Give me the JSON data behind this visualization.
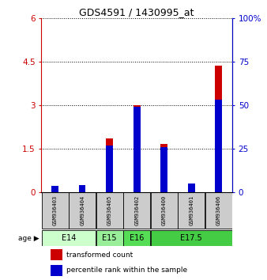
{
  "title": "GDS4591 / 1430995_at",
  "samples": [
    "GSM936403",
    "GSM936404",
    "GSM936405",
    "GSM936402",
    "GSM936400",
    "GSM936401",
    "GSM936406"
  ],
  "transformed_count": [
    0.05,
    0.05,
    1.85,
    3.0,
    1.65,
    0.05,
    4.35
  ],
  "percentile_rank_pct": [
    3.5,
    4.0,
    27.0,
    49.0,
    26.0,
    5.0,
    53.0
  ],
  "age_groups": [
    {
      "label": "E14",
      "samples": [
        0,
        1
      ],
      "color": "#ccffcc"
    },
    {
      "label": "E15",
      "samples": [
        2
      ],
      "color": "#99ee99"
    },
    {
      "label": "E16",
      "samples": [
        3
      ],
      "color": "#55dd55"
    },
    {
      "label": "E17.5",
      "samples": [
        4,
        5,
        6
      ],
      "color": "#44cc44"
    }
  ],
  "ylim_left": [
    0,
    6
  ],
  "ylim_right": [
    0,
    100
  ],
  "yticks_left": [
    0,
    1.5,
    3.0,
    4.5,
    6.0
  ],
  "ytick_labels_left": [
    "0",
    "1.5",
    "3",
    "4.5",
    "6"
  ],
  "yticks_right": [
    0,
    25,
    50,
    75,
    100
  ],
  "ytick_labels_right": [
    "0",
    "25",
    "50",
    "75",
    "100%"
  ],
  "bar_color_red": "#cc0000",
  "bar_color_blue": "#0000cc",
  "bar_width": 0.25,
  "bg_color": "#ffffff",
  "sample_box_color": "#cccccc",
  "legend_red_label": "transformed count",
  "legend_blue_label": "percentile rank within the sample"
}
